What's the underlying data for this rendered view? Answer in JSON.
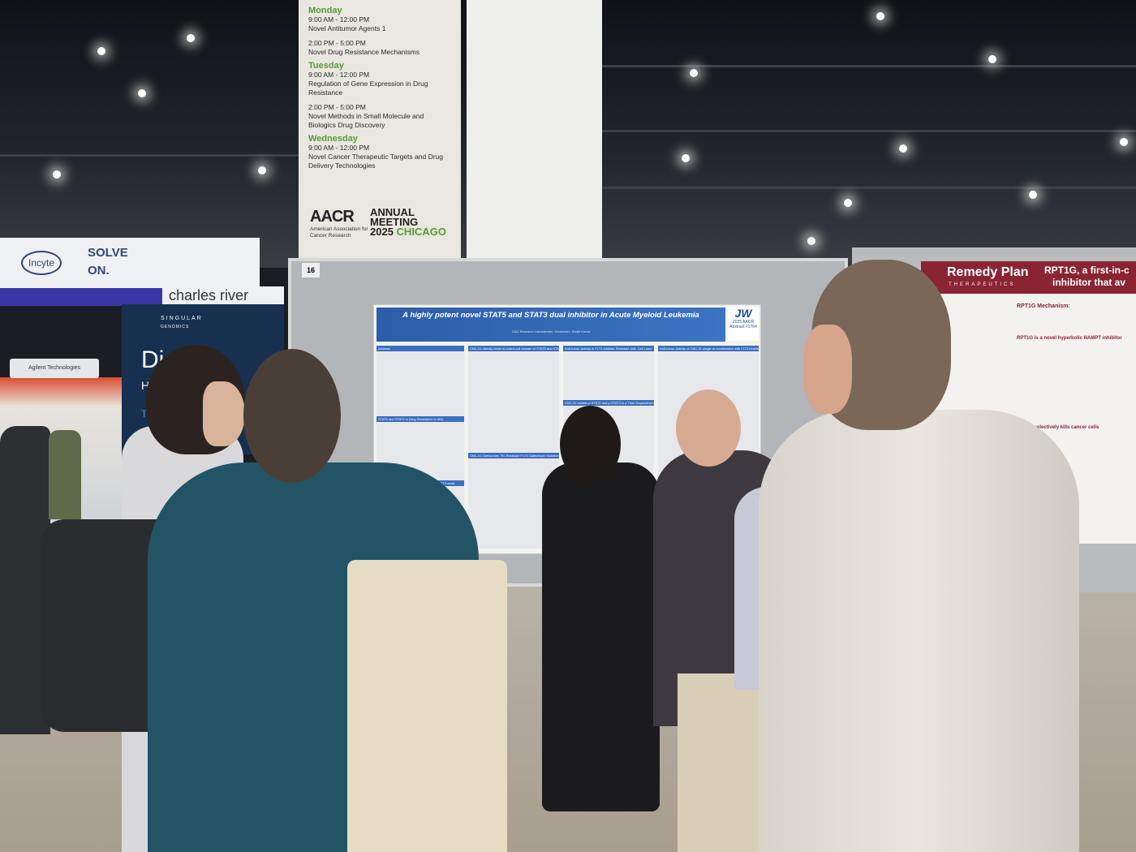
{
  "schedule_sign": {
    "days": [
      {
        "day": "Monday",
        "sessions": [
          {
            "time": "9:00 AM - 12:00 PM",
            "title": "Novel Antitumor Agents 1"
          },
          {
            "time": "2:00 PM - 5:00 PM",
            "title": "Novel Drug Resistance Mechanisms"
          }
        ]
      },
      {
        "day": "Tuesday",
        "sessions": [
          {
            "time": "9:00 AM - 12:00 PM",
            "title": "Regulation of Gene Expression in Drug Resistance"
          },
          {
            "time": "2:00 PM - 5:00 PM",
            "title": "Novel Methods in Small Molecule and Biologics Drug Discovery"
          }
        ]
      },
      {
        "day": "Wednesday",
        "sessions": [
          {
            "time": "9:00 AM - 12:00 PM",
            "title": "Novel Cancer Therapeutic Targets and Drug Delivery Technologies"
          }
        ]
      }
    ],
    "logo": {
      "org": "AACR",
      "org_full": "American Association for Cancer Research",
      "event_line1": "ANNUAL",
      "event_line2": "MEETING",
      "year": "2025",
      "city": "CHICAGO"
    }
  },
  "board_number": "16",
  "main_poster": {
    "title": "A highly potent novel STAT5 and STAT3 dual inhibitor in Acute Myeloid Leukemia",
    "affiliation": "C&C Research Laboratories, Gwacheon, South Korea",
    "logo": "JW",
    "badge_line1": "2025 AACR",
    "badge_line2": "Abstract #1764",
    "sections": [
      "Abstract",
      "CNC-01 directly binds to coiled-coil domain of STAT5 and STAT3",
      "Anti-tumor Activity in FLT3 Inhibitor Resistant AML Cell Lines",
      "Anti-tumor Activity of CNC-01 single or combination with FLT3 inhibitor in AML CDX Model",
      "STAT5 and STAT3 in Drug Resistance in AML",
      "CNC-01 inhibits p-STAT5 and p-STAT3 in a Time-Dependent Manner",
      "CNC-01 Overcomes TKI-Resistant FLT3 Gatekeeper Mutations and Bone Marrow Microenvironment-Induced Resistance",
      "Discovery of highly selective STAT5 and STAT3 small molecule inhibitor",
      "Conclusion"
    ]
  },
  "right_poster": {
    "company": "Remedy Plan",
    "company_sub": "THERAPEUTICS",
    "title_line1": "RPT1G, a first-in-c",
    "title_line2": "inhibitor that av",
    "sections": [
      "RPT1G Mechanism:",
      "RPT1G is a novel hyperbolic NAMPT inhibitor",
      "RPT1G selectively kills cancer cells"
    ]
  },
  "booths": {
    "incyte_logo": "Incyte",
    "incyte_slogan_1": "SOLVE",
    "incyte_slogan_2": "ON.",
    "charles_river": "charles river",
    "singular_1": "SINGULAR",
    "singular_2": "GENOMICS",
    "singular_text_1": "Di",
    "singular_text_2": "H",
    "singular_text_3": "Trans",
    "agilent": "Agilent Technologies"
  },
  "colors": {
    "aacr_green": "#5a9a3b",
    "poster_blue": "#2c5ea8",
    "remedy_maroon": "#8a2432",
    "incyte_blue": "#3a36a8"
  }
}
